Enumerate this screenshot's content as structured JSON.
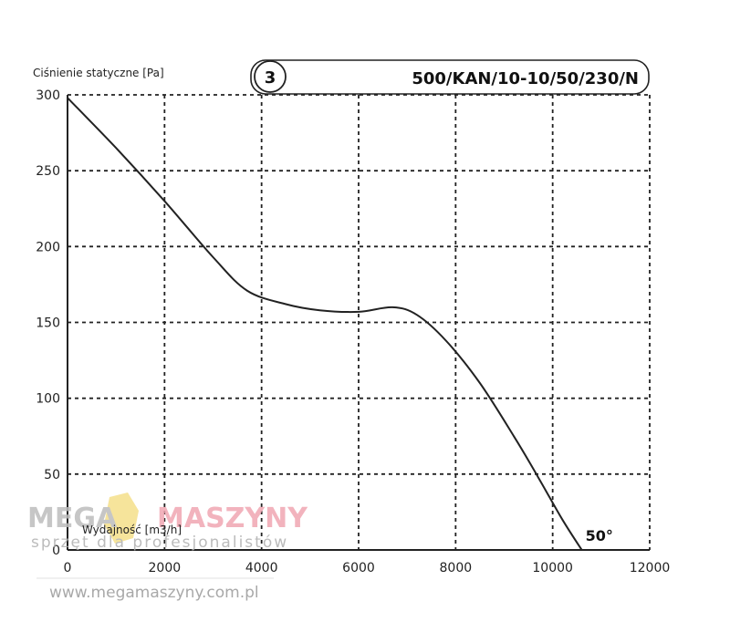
{
  "chart_data": {
    "type": "line",
    "ylabel": "Ciśnienie statyczne [Pa]",
    "xlabel": "Wydajność [m3/h]",
    "badge": "3",
    "model": "500/KAN/10-10/50/230/N",
    "xlim": [
      0,
      12000
    ],
    "ylim": [
      0,
      300
    ],
    "x_ticks": [
      "0",
      "2000",
      "4000",
      "6000",
      "8000",
      "10000",
      "12000"
    ],
    "y_ticks": [
      "0",
      "50",
      "100",
      "150",
      "200",
      "250",
      "300"
    ],
    "grid": true,
    "series": [
      {
        "name": "",
        "x": [
          0,
          1000,
          2000,
          3000,
          3700,
          4500,
          5200,
          6000,
          6700,
          7200,
          7800,
          8500,
          9200,
          9700,
          10200,
          10600
        ],
        "y": [
          298,
          265,
          230,
          193,
          171,
          162,
          158,
          157,
          160,
          155,
          138,
          110,
          75,
          48,
          20,
          0
        ]
      }
    ],
    "annotation": {
      "text": "50°",
      "x": 10600,
      "y": 0
    },
    "colors": {
      "line": "#222222",
      "grid": "#222222",
      "axis": "#222222"
    }
  },
  "watermark": {
    "brand_left": "MEGA",
    "brand_right": "MASZYNY",
    "tagline": "sprzęt dla profesjonalistów",
    "url": "www.megamaszyny.com.pl",
    "colors": {
      "left": "#bdbdbd",
      "right": "#f0a6b2",
      "logo": "#f5e08a"
    }
  }
}
